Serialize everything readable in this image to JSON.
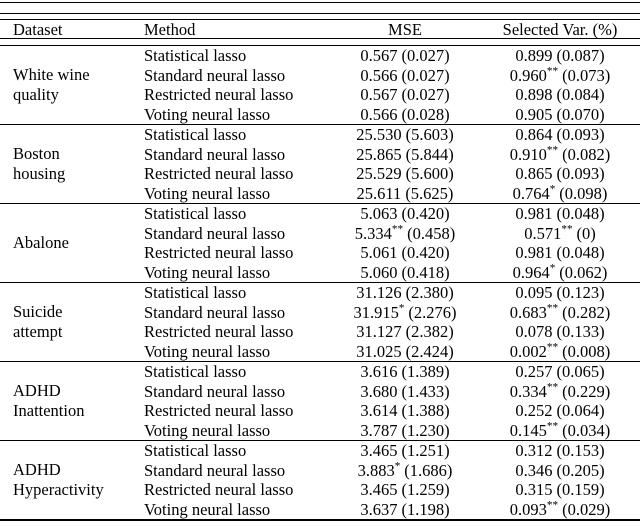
{
  "table": {
    "columns": [
      "Dataset",
      "Method",
      "MSE",
      "Selected Var. (%)"
    ],
    "groups": [
      {
        "dataset": {
          "line1": "White wine",
          "line2": "quality"
        },
        "rows": [
          {
            "method": "Statistical lasso",
            "mse": {
              "v": "0.567",
              "s": "",
              "sd": "(0.027)"
            },
            "sel": {
              "v": "0.899",
              "s": "",
              "sd": "(0.087)"
            }
          },
          {
            "method": "Standard neural lasso",
            "mse": {
              "v": "0.566",
              "s": "",
              "sd": "(0.027)"
            },
            "sel": {
              "v": "0.960",
              "s": "**",
              "sd": "(0.073)"
            }
          },
          {
            "method": "Restricted neural lasso",
            "mse": {
              "v": "0.567",
              "s": "",
              "sd": "(0.027)"
            },
            "sel": {
              "v": "0.898",
              "s": "",
              "sd": "(0.084)"
            }
          },
          {
            "method": "Voting neural lasso",
            "mse": {
              "v": "0.566",
              "s": "",
              "sd": "(0.028)"
            },
            "sel": {
              "v": "0.905",
              "s": "",
              "sd": "(0.070)"
            }
          }
        ]
      },
      {
        "dataset": {
          "line1": "Boston",
          "line2": "housing"
        },
        "rows": [
          {
            "method": "Statistical lasso",
            "mse": {
              "v": "25.530",
              "s": "",
              "sd": "(5.603)"
            },
            "sel": {
              "v": "0.864",
              "s": "",
              "sd": "(0.093)"
            }
          },
          {
            "method": "Standard neural lasso",
            "mse": {
              "v": "25.865",
              "s": "",
              "sd": "(5.844)"
            },
            "sel": {
              "v": "0.910",
              "s": "**",
              "sd": "(0.082)"
            }
          },
          {
            "method": "Restricted neural lasso",
            "mse": {
              "v": "25.529",
              "s": "",
              "sd": "(5.600)"
            },
            "sel": {
              "v": "0.865",
              "s": "",
              "sd": "(0.093)"
            }
          },
          {
            "method": "Voting neural lasso",
            "mse": {
              "v": "25.611",
              "s": "",
              "sd": "(5.625)"
            },
            "sel": {
              "v": "0.764",
              "s": "*",
              "sd": "(0.098)"
            }
          }
        ]
      },
      {
        "dataset": {
          "line1": "Abalone",
          "line2": ""
        },
        "rows": [
          {
            "method": "Statistical lasso",
            "mse": {
              "v": "5.063",
              "s": "",
              "sd": "(0.420)"
            },
            "sel": {
              "v": "0.981",
              "s": "",
              "sd": "(0.048)"
            }
          },
          {
            "method": "Standard neural lasso",
            "mse": {
              "v": "5.334",
              "s": "**",
              "sd": "(0.458)"
            },
            "sel": {
              "v": "0.571",
              "s": "**",
              "sd": "(0)"
            }
          },
          {
            "method": "Restricted neural lasso",
            "mse": {
              "v": "5.061",
              "s": "",
              "sd": "(0.420)"
            },
            "sel": {
              "v": "0.981",
              "s": "",
              "sd": "(0.048)"
            }
          },
          {
            "method": "Voting neural lasso",
            "mse": {
              "v": "5.060",
              "s": "",
              "sd": "(0.418)"
            },
            "sel": {
              "v": "0.964",
              "s": "*",
              "sd": "(0.062)"
            }
          }
        ]
      },
      {
        "dataset": {
          "line1": "Suicide",
          "line2": "attempt"
        },
        "rows": [
          {
            "method": "Statistical lasso",
            "mse": {
              "v": "31.126",
              "s": "",
              "sd": "(2.380)"
            },
            "sel": {
              "v": "0.095",
              "s": "",
              "sd": "(0.123)"
            }
          },
          {
            "method": "Standard neural lasso",
            "mse": {
              "v": "31.915",
              "s": "*",
              "sd": "(2.276)"
            },
            "sel": {
              "v": "0.683",
              "s": "**",
              "sd": "(0.282)"
            }
          },
          {
            "method": "Restricted neural lasso",
            "mse": {
              "v": "31.127",
              "s": "",
              "sd": "(2.382)"
            },
            "sel": {
              "v": "0.078",
              "s": "",
              "sd": "(0.133)"
            }
          },
          {
            "method": "Voting neural lasso",
            "mse": {
              "v": "31.025",
              "s": "",
              "sd": "(2.424)"
            },
            "sel": {
              "v": "0.002",
              "s": "**",
              "sd": "(0.008)"
            }
          }
        ]
      },
      {
        "dataset": {
          "line1": "ADHD",
          "line2": "Inattention"
        },
        "rows": [
          {
            "method": "Statistical lasso",
            "mse": {
              "v": "3.616",
              "s": "",
              "sd": "(1.389)"
            },
            "sel": {
              "v": "0.257",
              "s": "",
              "sd": "(0.065)"
            }
          },
          {
            "method": "Standard neural lasso",
            "mse": {
              "v": "3.680",
              "s": "",
              "sd": "(1.433)"
            },
            "sel": {
              "v": "0.334",
              "s": "**",
              "sd": "(0.229)"
            }
          },
          {
            "method": "Restricted neural lasso",
            "mse": {
              "v": "3.614",
              "s": "",
              "sd": "(1.388)"
            },
            "sel": {
              "v": "0.252",
              "s": "",
              "sd": "(0.064)"
            }
          },
          {
            "method": "Voting neural lasso",
            "mse": {
              "v": "3.787",
              "s": "",
              "sd": "(1.230)"
            },
            "sel": {
              "v": "0.145",
              "s": "**",
              "sd": "(0.034)"
            }
          }
        ]
      },
      {
        "dataset": {
          "line1": "ADHD",
          "line2": "Hyperactivity"
        },
        "rows": [
          {
            "method": "Statistical lasso",
            "mse": {
              "v": "3.465",
              "s": "",
              "sd": "(1.251)"
            },
            "sel": {
              "v": "0.312",
              "s": "",
              "sd": "(0.153)"
            }
          },
          {
            "method": "Standard neural lasso",
            "mse": {
              "v": "3.883",
              "s": "*",
              "sd": "(1.686)"
            },
            "sel": {
              "v": "0.346",
              "s": "",
              "sd": "(0.205)"
            }
          },
          {
            "method": "Restricted neural lasso",
            "mse": {
              "v": "3.465",
              "s": "",
              "sd": "(1.259)"
            },
            "sel": {
              "v": "0.315",
              "s": "",
              "sd": "(0.159)"
            }
          },
          {
            "method": "Voting neural lasso",
            "mse": {
              "v": "3.637",
              "s": "",
              "sd": "(1.198)"
            },
            "sel": {
              "v": "0.093",
              "s": "**",
              "sd": "(0.029)"
            }
          }
        ]
      }
    ]
  }
}
